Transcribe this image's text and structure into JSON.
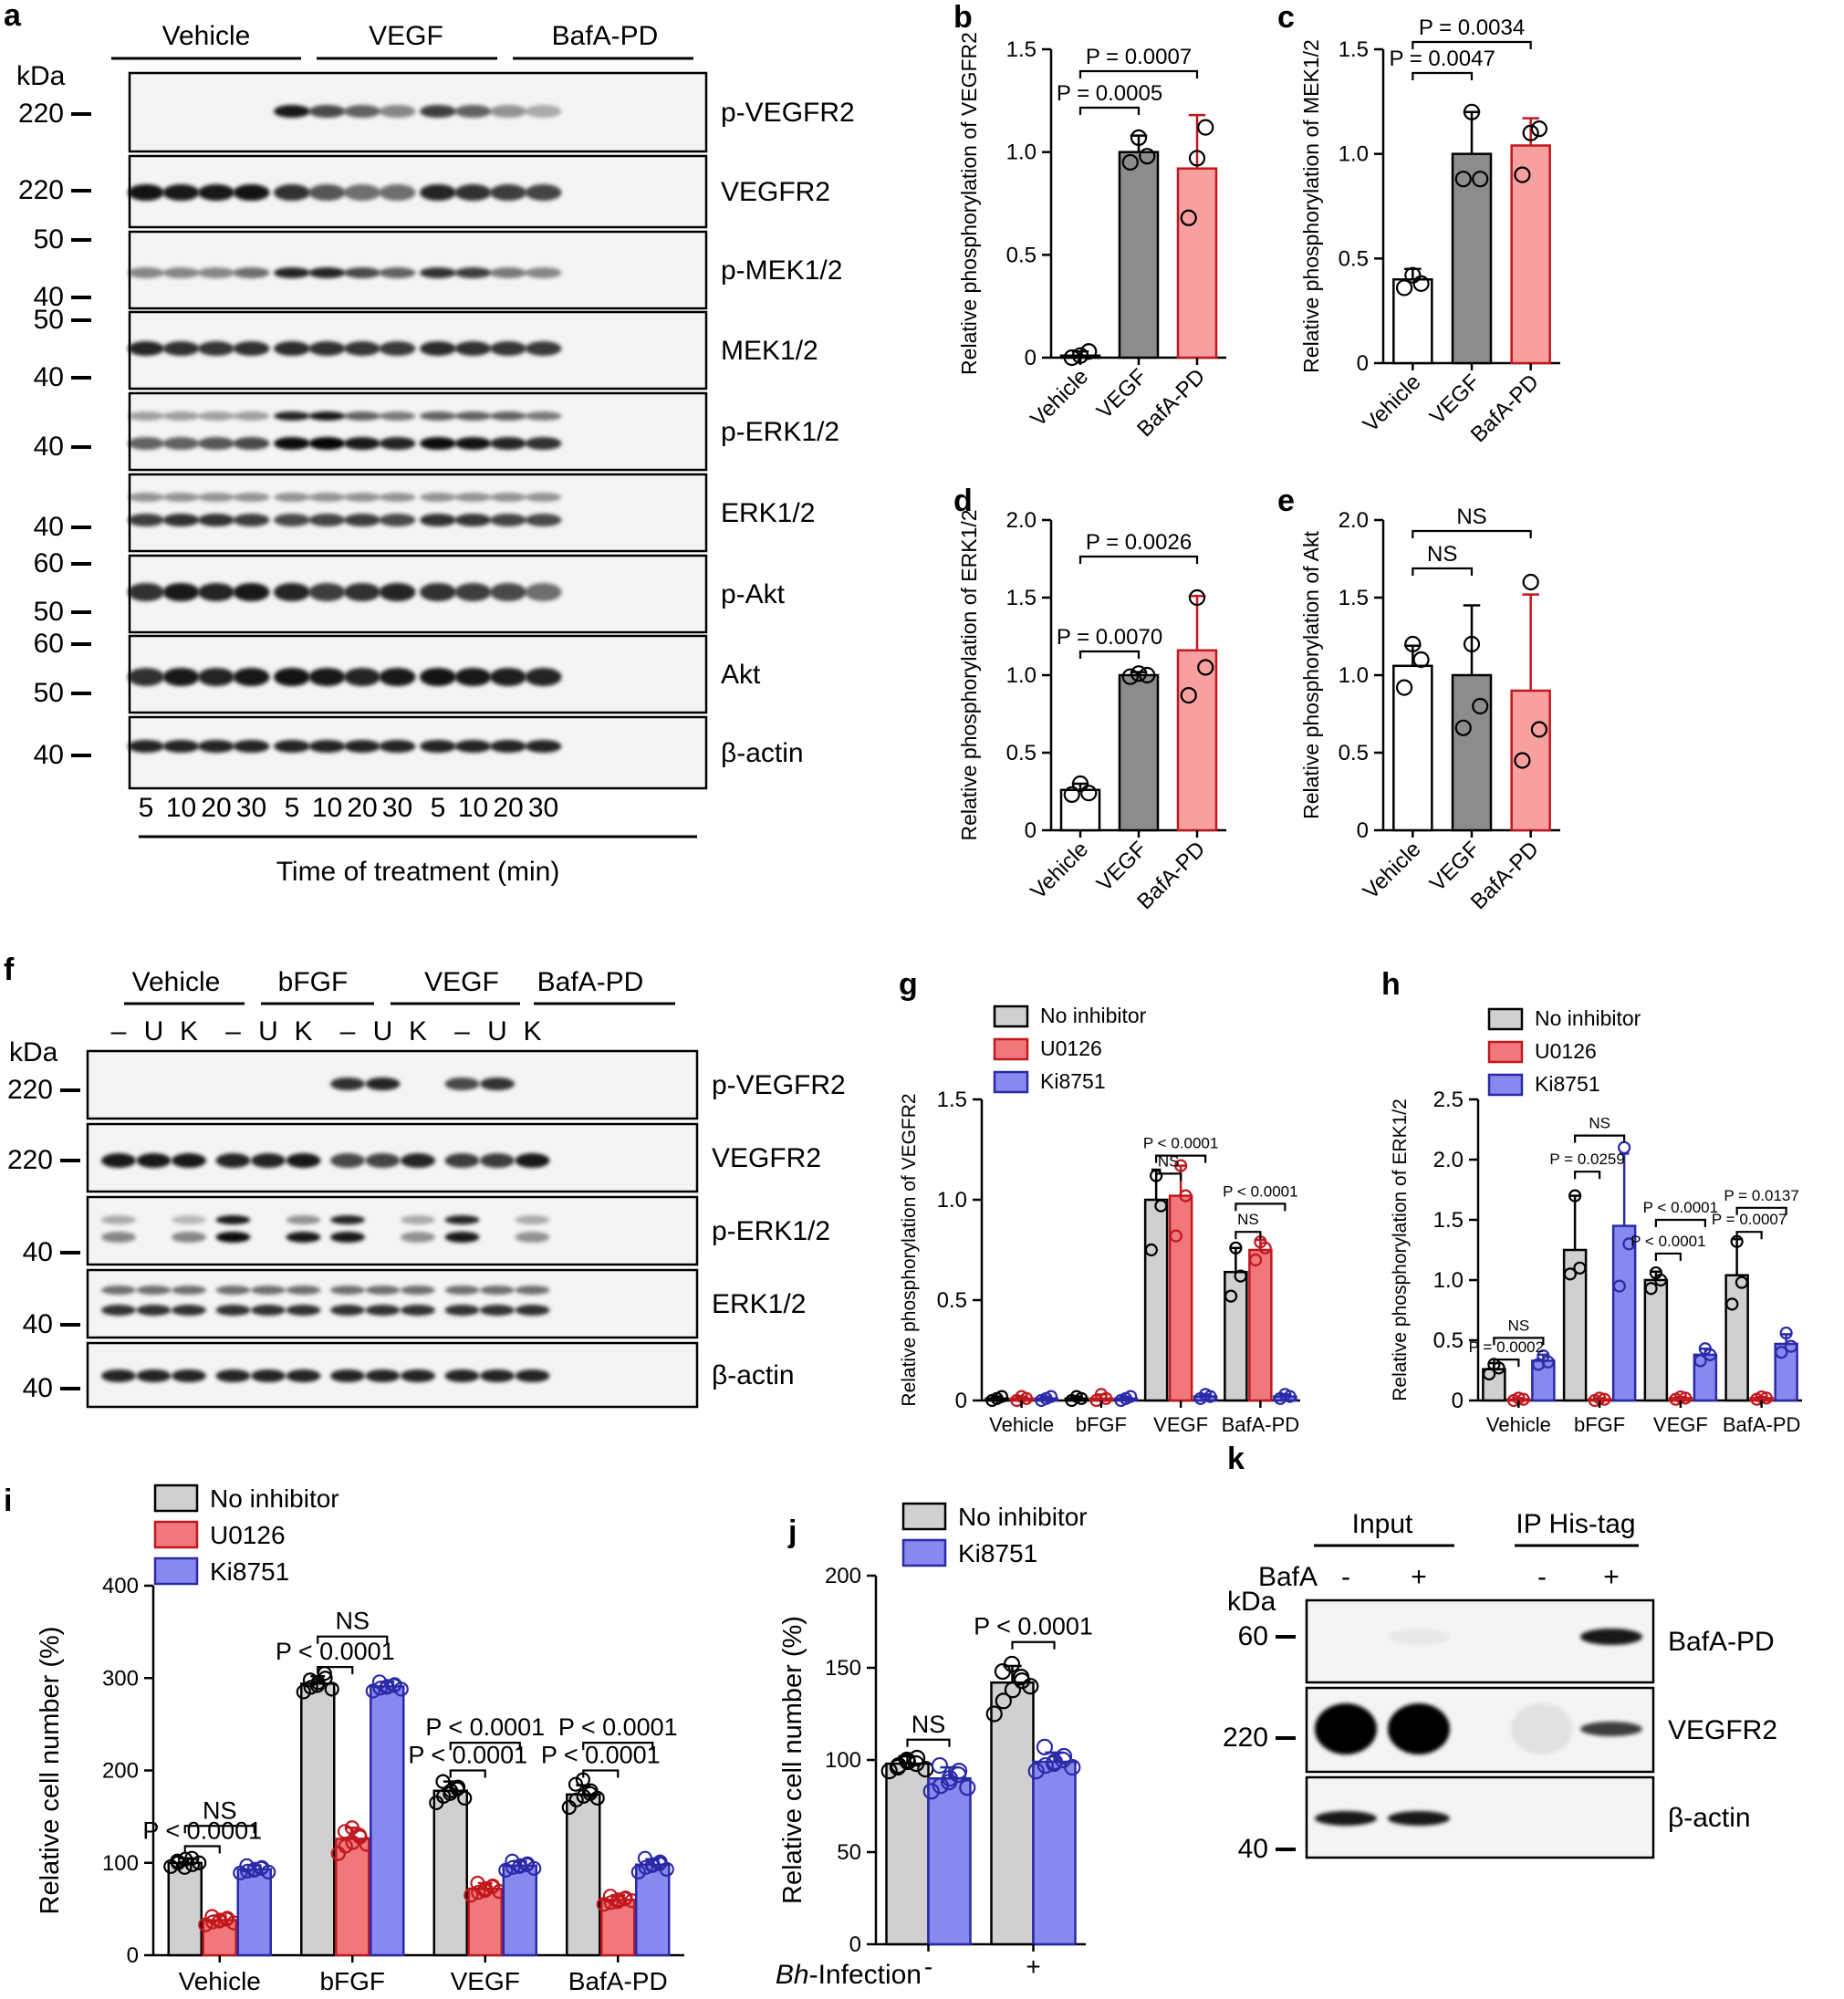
{
  "colors": {
    "vehicle": "#ffffff",
    "vegf": "#8c8c8c",
    "bafa": "#f8a0a0",
    "bafa_stroke": "#c0181e",
    "noinh": "#d0d0d0",
    "u0126": "#f0787a",
    "ki8751": "#8888ee",
    "ki_stroke": "#2a2aa8"
  },
  "panels": {
    "a": {
      "label": "a",
      "groups": [
        "Vehicle",
        "VEGF",
        "BafA-PD"
      ],
      "kda": "kDa",
      "blots": [
        {
          "name": "p-VEGFR2",
          "markers": [
            "220"
          ]
        },
        {
          "name": "VEGFR2",
          "markers": [
            "220"
          ]
        },
        {
          "name": "p-MEK1/2",
          "markers": [
            "50",
            "40"
          ]
        },
        {
          "name": "MEK1/2",
          "markers": [
            "50",
            "40"
          ]
        },
        {
          "name": "p-ERK1/2",
          "markers": [
            "40"
          ]
        },
        {
          "name": "ERK1/2",
          "markers": [
            "40"
          ]
        },
        {
          "name": "p-Akt",
          "markers": [
            "60",
            "50"
          ]
        },
        {
          "name": "Akt",
          "markers": [
            "60",
            "50"
          ]
        },
        {
          "name": "β-actin",
          "markers": [
            "40"
          ]
        }
      ],
      "times": [
        "5",
        "10",
        "20",
        "30",
        "5",
        "10",
        "20",
        "30",
        "5",
        "10",
        "20",
        "30"
      ],
      "time_label": "Time of treatment (min)"
    },
    "f": {
      "label": "f",
      "groups": [
        "Vehicle",
        "bFGF",
        "VEGF",
        "BafA-PD"
      ],
      "lanes": [
        "–",
        "U",
        "K",
        "–",
        "U",
        "K",
        "–",
        "U",
        "K",
        "–",
        "U",
        "K"
      ],
      "kda": "kDa",
      "blots": [
        {
          "name": "p-VEGFR2",
          "markers": [
            "220"
          ]
        },
        {
          "name": "VEGFR2",
          "markers": [
            "220"
          ]
        },
        {
          "name": "p-ERK1/2",
          "markers": [
            "40"
          ]
        },
        {
          "name": "ERK1/2",
          "markers": [
            "40"
          ]
        },
        {
          "name": "β-actin",
          "markers": [
            "40"
          ]
        }
      ]
    },
    "k": {
      "label": "k",
      "groups": [
        "Input",
        "IP His-tag"
      ],
      "treat_label": "BafA",
      "lanes": [
        "-",
        "+",
        "-",
        "+"
      ],
      "kda": "kDa",
      "blots": [
        {
          "name": "BafA-PD",
          "markers": [
            "60"
          ]
        },
        {
          "name": "VEGFR2",
          "markers": [
            "220"
          ]
        },
        {
          "name": "β-actin",
          "markers": [
            "40"
          ]
        }
      ]
    }
  },
  "chart_data": [
    {
      "panel": "b",
      "type": "bar",
      "title": "",
      "ylabel": "Relative phosphorylation of VEGFR2",
      "categories": [
        "Vehicle",
        "VEGF",
        "BafA-PD"
      ],
      "values": [
        0.01,
        1.0,
        0.92
      ],
      "errors": [
        0.02,
        0.08,
        0.26
      ],
      "points": [
        [
          0.0,
          0.01,
          0.03
        ],
        [
          0.95,
          1.07,
          0.98
        ],
        [
          0.68,
          0.97,
          1.12
        ]
      ],
      "ylim": [
        0,
        1.5
      ],
      "yticks": [
        "0",
        "0.5",
        "1.0",
        "1.5"
      ],
      "annotations": [
        {
          "text": "P = 0.0005",
          "from": 0,
          "to": 1
        },
        {
          "text": "P = 0.0007",
          "from": 0,
          "to": 2
        }
      ]
    },
    {
      "panel": "c",
      "type": "bar",
      "title": "",
      "ylabel": "Relative phosphorylation of MEK1/2",
      "categories": [
        "Vehicle",
        "VEGF",
        "BafA-PD"
      ],
      "values": [
        0.4,
        1.0,
        1.04
      ],
      "errors": [
        0.05,
        0.2,
        0.13
      ],
      "points": [
        [
          0.36,
          0.42,
          0.38
        ],
        [
          0.88,
          1.2,
          0.88
        ],
        [
          0.9,
          1.1,
          1.12
        ]
      ],
      "ylim": [
        0,
        1.5
      ],
      "yticks": [
        "0",
        "0.5",
        "1.0",
        "1.5"
      ],
      "annotations": [
        {
          "text": "P = 0.0047",
          "from": 0,
          "to": 1
        },
        {
          "text": "P = 0.0034",
          "from": 0,
          "to": 2
        }
      ]
    },
    {
      "panel": "d",
      "type": "bar",
      "title": "",
      "ylabel": "Relative phosphorylation of ERK1/2",
      "categories": [
        "Vehicle",
        "VEGF",
        "BafA-PD"
      ],
      "values": [
        0.26,
        1.0,
        1.16
      ],
      "errors": [
        0.04,
        0.02,
        0.35
      ],
      "points": [
        [
          0.23,
          0.3,
          0.24
        ],
        [
          0.99,
          1.01,
          1.0
        ],
        [
          0.87,
          1.5,
          1.05
        ]
      ],
      "ylim": [
        0,
        2.0
      ],
      "yticks": [
        "0",
        "0.5",
        "1.0",
        "1.5",
        "2.0"
      ],
      "annotations": [
        {
          "text": "P = 0.0070",
          "from": 0,
          "to": 1
        },
        {
          "text": "P = 0.0026",
          "from": 0,
          "to": 2
        }
      ]
    },
    {
      "panel": "e",
      "type": "bar",
      "title": "",
      "ylabel": "Relative phosphorylation of Akt",
      "categories": [
        "Vehicle",
        "VEGF",
        "BafA-PD"
      ],
      "values": [
        1.06,
        1.0,
        0.9
      ],
      "errors": [
        0.13,
        0.45,
        0.62
      ],
      "points": [
        [
          0.92,
          1.2,
          1.1
        ],
        [
          0.66,
          1.2,
          0.8
        ],
        [
          0.45,
          1.6,
          0.65
        ]
      ],
      "ylim": [
        0,
        2.0
      ],
      "yticks": [
        "0",
        "0.5",
        "1.0",
        "1.5",
        "2.0"
      ],
      "annotations": [
        {
          "text": "NS",
          "from": 0,
          "to": 1
        },
        {
          "text": "NS",
          "from": 0,
          "to": 2
        }
      ]
    },
    {
      "panel": "g",
      "type": "bar",
      "title": "",
      "ylabel": "Relative phosphorylation of VEGFR2",
      "categories": [
        "Vehicle",
        "bFGF",
        "VEGF",
        "BafA-PD"
      ],
      "legend": [
        "No inhibitor",
        "U0126",
        "Ki8751"
      ],
      "series": [
        {
          "name": "No inhibitor",
          "values": [
            0.01,
            0.01,
            1.0,
            0.64
          ],
          "errors": [
            0.01,
            0.01,
            0.15,
            0.12
          ],
          "points": [
            [
              0.0,
              0.01,
              0.02
            ],
            [
              0.0,
              0.02,
              0.01
            ],
            [
              0.75,
              1.12,
              0.97
            ],
            [
              0.52,
              0.76,
              0.62
            ]
          ]
        },
        {
          "name": "U0126",
          "values": [
            0.01,
            0.01,
            1.02,
            0.75
          ],
          "errors": [
            0.01,
            0.02,
            0.15,
            0.05
          ],
          "points": [
            [
              0.0,
              0.02,
              0.01
            ],
            [
              0.0,
              0.03,
              0.01
            ],
            [
              0.82,
              1.17,
              1.02
            ],
            [
              0.7,
              0.79,
              0.76
            ]
          ]
        },
        {
          "name": "Ki8751",
          "values": [
            0.01,
            0.01,
            0.02,
            0.02
          ],
          "errors": [
            0.01,
            0.01,
            0.01,
            0.01
          ],
          "points": [
            [
              0.0,
              0.01,
              0.02
            ],
            [
              0.0,
              0.01,
              0.02
            ],
            [
              0.01,
              0.03,
              0.02
            ],
            [
              0.01,
              0.03,
              0.02
            ]
          ]
        }
      ],
      "ylim": [
        0,
        1.5
      ],
      "yticks": [
        "0",
        "0.5",
        "1.0",
        "1.5"
      ],
      "annotations": [
        {
          "text": "P < 0.0001",
          "cat": 2,
          "from": 0,
          "to": 2,
          "level": 1.22
        },
        {
          "text": "NS",
          "cat": 2,
          "from": 0,
          "to": 1,
          "level": 1.13
        },
        {
          "text": "P < 0.0001",
          "cat": 3,
          "from": 0,
          "to": 2,
          "level": 0.98
        },
        {
          "text": "NS",
          "cat": 3,
          "from": 0,
          "to": 1,
          "level": 0.84
        }
      ]
    },
    {
      "panel": "h",
      "type": "bar",
      "title": "",
      "ylabel": "Relative phosphorylation of ERK1/2",
      "categories": [
        "Vehicle",
        "bFGF",
        "VEGF",
        "BafA-PD"
      ],
      "legend": [
        "No inhibitor",
        "U0126",
        "Ki8751"
      ],
      "series": [
        {
          "name": "No inhibitor",
          "values": [
            0.26,
            1.25,
            1.0,
            1.04
          ],
          "errors": [
            0.05,
            0.45,
            0.07,
            0.3
          ],
          "points": [
            [
              0.22,
              0.3,
              0.27
            ],
            [
              1.05,
              1.7,
              1.1
            ],
            [
              0.93,
              1.06,
              1.0
            ],
            [
              0.8,
              1.32,
              0.98
            ]
          ]
        },
        {
          "name": "U0126",
          "values": [
            0.01,
            0.01,
            0.02,
            0.02
          ],
          "errors": [
            0.01,
            0.01,
            0.01,
            0.01
          ],
          "points": [
            [
              0.0,
              0.02,
              0.01
            ],
            [
              0.0,
              0.02,
              0.01
            ],
            [
              0.01,
              0.03,
              0.02
            ],
            [
              0.01,
              0.03,
              0.02
            ]
          ]
        },
        {
          "name": "Ki8751",
          "values": [
            0.33,
            1.45,
            0.38,
            0.47
          ],
          "errors": [
            0.05,
            0.6,
            0.05,
            0.08
          ],
          "points": [
            [
              0.3,
              0.37,
              0.32
            ],
            [
              0.95,
              2.1,
              1.3
            ],
            [
              0.33,
              0.43,
              0.38
            ],
            [
              0.4,
              0.56,
              0.45
            ]
          ]
        }
      ],
      "ylim": [
        0,
        2.5
      ],
      "yticks": [
        "0",
        "0.5",
        "1.0",
        "1.5",
        "2.0",
        "2.5"
      ],
      "annotations": [
        {
          "text": "NS",
          "cat": 0,
          "from": 0,
          "to": 2,
          "level": 0.52
        },
        {
          "text": "P = 0.0002",
          "cat": 0,
          "from": 0,
          "to": 1,
          "level": 0.34
        },
        {
          "text": "NS",
          "cat": 1,
          "from": 0,
          "to": 2,
          "level": 2.2
        },
        {
          "text": "P = 0.0259",
          "cat": 1,
          "from": 0,
          "to": 1,
          "level": 1.9
        },
        {
          "text": "P < 0.0001",
          "cat": 2,
          "from": 0,
          "to": 2,
          "level": 1.5
        },
        {
          "text": "P < 0.0001",
          "cat": 2,
          "from": 0,
          "to": 1,
          "level": 1.22
        },
        {
          "text": "P = 0.0137",
          "cat": 3,
          "from": 0,
          "to": 2,
          "level": 1.6
        },
        {
          "text": "P = 0.0007",
          "cat": 3,
          "from": 0,
          "to": 1,
          "level": 1.4
        }
      ]
    },
    {
      "panel": "i",
      "type": "bar",
      "title": "",
      "ylabel": "Relative cell number (%)",
      "categories": [
        "Vehicle",
        "bFGF",
        "VEGF",
        "BafA-PD"
      ],
      "legend": [
        "No inhibitor",
        "U0126",
        "Ki8751"
      ],
      "series": [
        {
          "name": "No inhibitor",
          "values": [
            100,
            294,
            178,
            174
          ],
          "errors": [
            5,
            8,
            10,
            10
          ],
          "points": [
            [
              96,
              100,
              104,
              98,
              102,
              95,
              105,
              100
            ],
            [
              285,
              290,
              295,
              300,
              298,
              292,
              305,
              288
            ],
            [
              165,
              172,
              178,
              182,
              188,
              175,
              180,
              170
            ],
            [
              160,
              168,
              172,
              178,
              185,
              190,
              175,
              170
            ]
          ]
        },
        {
          "name": "U0126",
          "values": [
            38,
            126,
            72,
            60
          ],
          "errors": [
            5,
            12,
            6,
            5
          ],
          "points": [
            [
              33,
              36,
              38,
              40,
              42,
              37,
              39,
              35
            ],
            [
              110,
              118,
              122,
              128,
              134,
              138,
              130,
              120
            ],
            [
              65,
              68,
              72,
              75,
              78,
              70,
              74,
              69
            ],
            [
              55,
              57,
              60,
              62,
              64,
              58,
              61,
              59
            ]
          ]
        },
        {
          "name": "Ki8751",
          "values": [
            93,
            291,
            97,
            98
          ],
          "errors": [
            4,
            5,
            5,
            6
          ],
          "points": [
            [
              89,
              91,
              93,
              95,
              97,
              92,
              94,
              90
            ],
            [
              286,
              289,
              291,
              293,
              296,
              290,
              292,
              288
            ],
            [
              92,
              95,
              97,
              99,
              102,
              96,
              98,
              94
            ],
            [
              90,
              95,
              98,
              101,
              105,
              97,
              99,
              93
            ]
          ]
        }
      ],
      "ylim": [
        0,
        400
      ],
      "yticks": [
        "0",
        "100",
        "200",
        "300",
        "400"
      ],
      "annotations": [
        {
          "text": "NS",
          "cat": 0,
          "from": 0,
          "to": 2,
          "level": 140
        },
        {
          "text": "P < 0.0001",
          "cat": 0,
          "from": 0,
          "to": 1,
          "level": 118
        },
        {
          "text": "NS",
          "cat": 1,
          "from": 0,
          "to": 2,
          "level": 345
        },
        {
          "text": "P < 0.0001",
          "cat": 1,
          "from": 0,
          "to": 1,
          "level": 312
        },
        {
          "text": "P < 0.0001",
          "cat": 2,
          "from": 0,
          "to": 2,
          "level": 230
        },
        {
          "text": "P < 0.0001",
          "cat": 2,
          "from": 0,
          "to": 1,
          "level": 200
        },
        {
          "text": "P < 0.0001",
          "cat": 3,
          "from": 0,
          "to": 2,
          "level": 230
        },
        {
          "text": "P < 0.0001",
          "cat": 3,
          "from": 0,
          "to": 1,
          "level": 200
        }
      ]
    },
    {
      "panel": "j",
      "type": "bar",
      "title": "",
      "ylabel": "Relative cell number (%)",
      "xlabel": "Bh-Infection",
      "xlabel_italic": "Bh",
      "xlabel_rest": "-Infection",
      "categories": [
        "-",
        "+"
      ],
      "legend": [
        "No inhibitor",
        "Ki8751"
      ],
      "series": [
        {
          "name": "No inhibitor",
          "values": [
            98,
            142
          ],
          "errors": [
            4,
            9
          ],
          "points": [
            [
              94,
              97,
              99,
              101,
              96,
              100,
              98,
              95
            ],
            [
              125,
              132,
              138,
              143,
              148,
              152,
              145,
              140
            ]
          ]
        },
        {
          "name": "Ki8751",
          "values": [
            90,
            99
          ],
          "errors": [
            6,
            5
          ],
          "points": [
            [
              83,
              86,
              90,
              94,
              97,
              88,
              92,
              85
            ],
            [
              94,
              97,
              99,
              102,
              107,
              98,
              100,
              96
            ]
          ]
        }
      ],
      "ylim": [
        0,
        200
      ],
      "yticks": [
        "0",
        "50",
        "100",
        "150",
        "200"
      ],
      "annotations": [
        {
          "text": "NS",
          "cat": 0,
          "from": 0,
          "to": 1,
          "level": 111
        },
        {
          "text": "P < 0.0001",
          "cat": 1,
          "from": 0,
          "to": 1,
          "level": 164
        }
      ]
    }
  ]
}
